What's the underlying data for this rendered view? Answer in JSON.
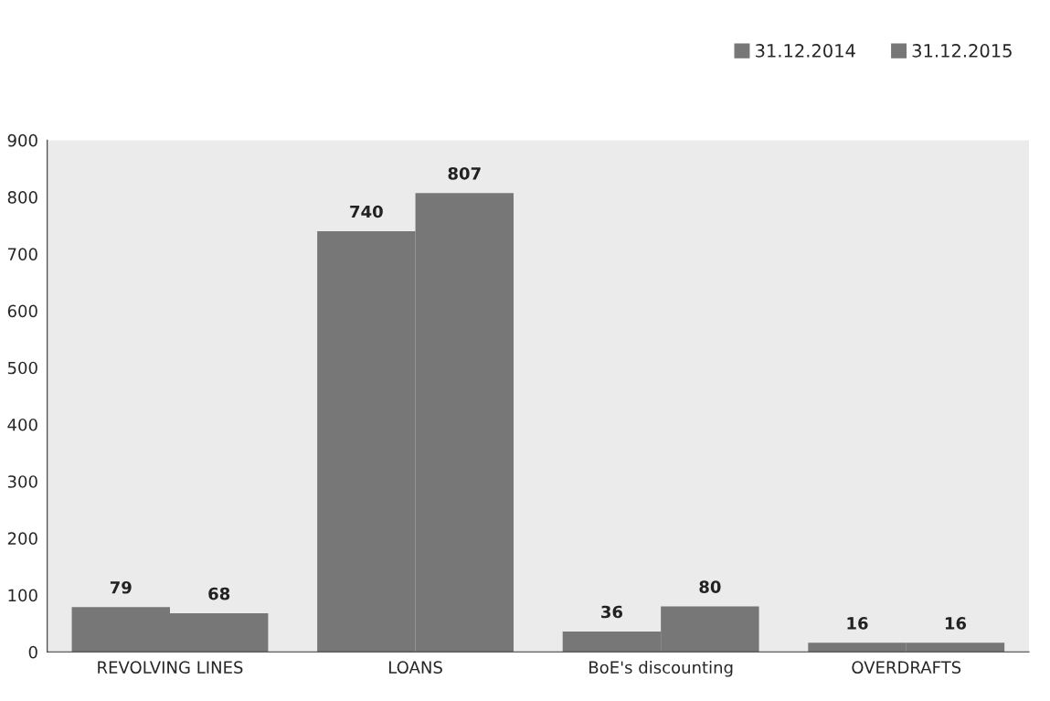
{
  "chart_data": {
    "type": "bar",
    "categories": [
      "REVOLVING LINES",
      "LOANS",
      "BoE's discounting",
      "OVERDRAFTS"
    ],
    "series": [
      {
        "name": "31.12.2014",
        "color": "#777777",
        "values": [
          79,
          740,
          36,
          16
        ]
      },
      {
        "name": "31.12.2015",
        "color": "#777777",
        "values": [
          68,
          807,
          80,
          16
        ]
      }
    ],
    "ylim": [
      0,
      900
    ],
    "yticks": [
      0,
      100,
      200,
      300,
      400,
      500,
      600,
      700,
      800,
      900
    ],
    "data_labels": true,
    "grid": false,
    "legend": "top right"
  }
}
